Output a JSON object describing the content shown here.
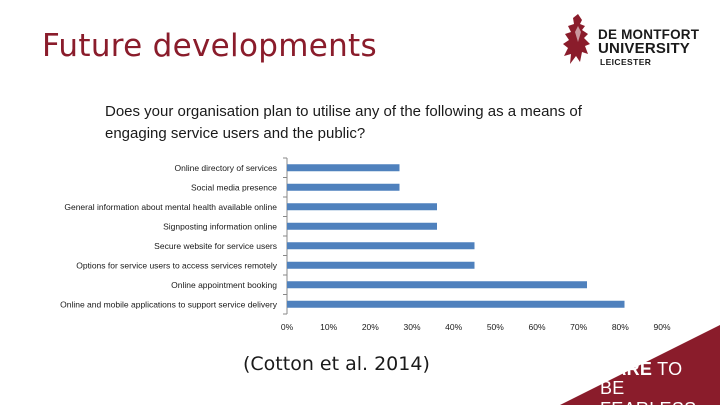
{
  "slide": {
    "title": "Future developments",
    "question": "Does your organisation plan to utilise any of the following as a means of engaging service users and the public?",
    "citation": "(Cotton et al. 2014)"
  },
  "logo": {
    "line1": "DE MONTFORT",
    "line2": "UNIVERSITY",
    "line3": "LEICESTER",
    "color": "#8a1c2b"
  },
  "banner": {
    "line1_bold": "DARE",
    "line1_rest": " TO",
    "line2": "BE FEARLESS",
    "color": "#8a1c2b"
  },
  "chart_data": {
    "type": "bar",
    "orientation": "horizontal",
    "categories": [
      "Online directory of services",
      "Social media presence",
      "General information about mental health available online",
      "Signposting information online",
      "Secure website for service users",
      "Options for service users to access services remotely",
      "Online appointment booking",
      "Online and mobile applications to support service delivery"
    ],
    "values": [
      27,
      27,
      36,
      36,
      45,
      45,
      72,
      81
    ],
    "xlim": [
      0,
      90
    ],
    "xticks": [
      "0%",
      "10%",
      "20%",
      "30%",
      "40%",
      "50%",
      "60%",
      "70%",
      "80%",
      "90%"
    ],
    "bar_color": "#4f81bd",
    "grid": false
  }
}
